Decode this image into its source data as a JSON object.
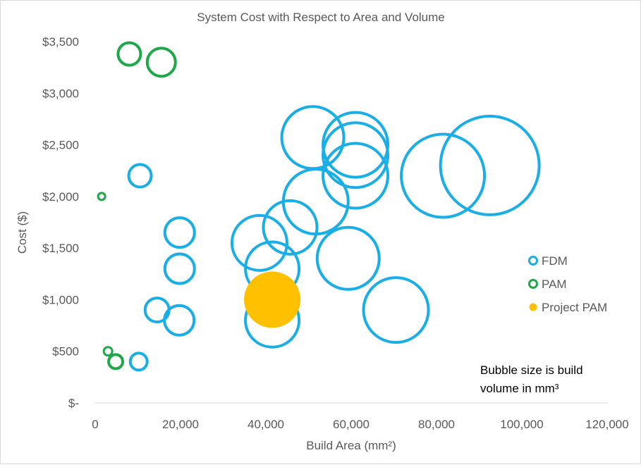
{
  "chart_data": {
    "type": "bubble",
    "title": "System Cost with Respect to Area and Volume",
    "xlabel": "Build Area (mm²)",
    "ylabel": "Cost ($)",
    "xlim": [
      0,
      120000
    ],
    "ylim": [
      0,
      3500
    ],
    "x_ticks": [
      {
        "value": 0,
        "label": "0"
      },
      {
        "value": 20000,
        "label": "20,000"
      },
      {
        "value": 40000,
        "label": "40,000"
      },
      {
        "value": 60000,
        "label": "60,000"
      },
      {
        "value": 80000,
        "label": "80,000"
      },
      {
        "value": 100000,
        "label": "100,000"
      },
      {
        "value": 120000,
        "label": "120,000"
      }
    ],
    "y_ticks": [
      {
        "value": 0,
        "label": "$-"
      },
      {
        "value": 500,
        "label": "$500"
      },
      {
        "value": 1000,
        "label": "$1,000"
      },
      {
        "value": 1500,
        "label": "$1,500"
      },
      {
        "value": 2000,
        "label": "$2,000"
      },
      {
        "value": 2500,
        "label": "$2,500"
      },
      {
        "value": 3000,
        "label": "$3,000"
      },
      {
        "value": 3500,
        "label": "$3,500"
      }
    ],
    "grid": false,
    "legend_position": "right",
    "annotation": {
      "line1": "Bubble size is build",
      "line2": "volume in mm³"
    },
    "series": [
      {
        "name": "FDM",
        "color": "#1aaee6",
        "filled": false,
        "points": [
          {
            "x": 10500,
            "y": 2200,
            "size": 16
          },
          {
            "x": 19800,
            "y": 1650,
            "size": 21
          },
          {
            "x": 19800,
            "y": 1300,
            "size": 21
          },
          {
            "x": 14500,
            "y": 900,
            "size": 17
          },
          {
            "x": 19700,
            "y": 800,
            "size": 21
          },
          {
            "x": 10200,
            "y": 400,
            "size": 12
          },
          {
            "x": 38500,
            "y": 1550,
            "size": 39
          },
          {
            "x": 41500,
            "y": 1300,
            "size": 38
          },
          {
            "x": 41500,
            "y": 800,
            "size": 38
          },
          {
            "x": 45700,
            "y": 1700,
            "size": 38
          },
          {
            "x": 51000,
            "y": 2570,
            "size": 44
          },
          {
            "x": 51700,
            "y": 1950,
            "size": 46
          },
          {
            "x": 59300,
            "y": 1400,
            "size": 44
          },
          {
            "x": 61000,
            "y": 2500,
            "size": 46
          },
          {
            "x": 61000,
            "y": 2400,
            "size": 46
          },
          {
            "x": 61000,
            "y": 2200,
            "size": 46
          },
          {
            "x": 70500,
            "y": 900,
            "size": 46
          },
          {
            "x": 81500,
            "y": 2200,
            "size": 59
          },
          {
            "x": 92500,
            "y": 2300,
            "size": 70
          }
        ]
      },
      {
        "name": "PAM",
        "color": "#1fa84a",
        "filled": false,
        "points": [
          {
            "x": 8000,
            "y": 3380,
            "size": 16
          },
          {
            "x": 15500,
            "y": 3300,
            "size": 20
          },
          {
            "x": 1500,
            "y": 2000,
            "size": 5
          },
          {
            "x": 3000,
            "y": 500,
            "size": 6
          },
          {
            "x": 4800,
            "y": 400,
            "size": 10
          }
        ]
      },
      {
        "name": "Project PAM",
        "color": "#ffc000",
        "filled": true,
        "points": [
          {
            "x": 41500,
            "y": 1000,
            "size": 40
          }
        ]
      }
    ]
  }
}
